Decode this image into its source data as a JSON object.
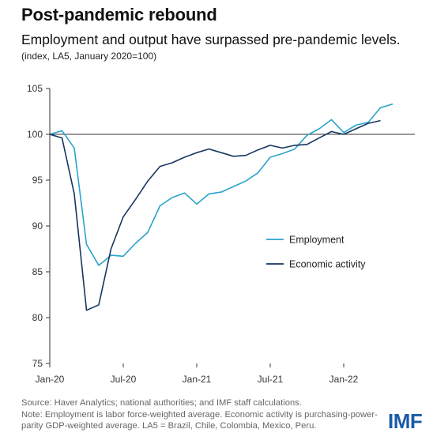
{
  "header": {
    "title": "Post-pandemic rebound",
    "subtitle": "Employment and output have surpassed pre-pandemic levels.",
    "unit_note": "(index, LA5, January 2020=100)"
  },
  "footer": {
    "source": "Source: Haver Analytics; national authorities; and IMF staff calculations.",
    "note": "Note: Employment is labor force-weighted average. Economic activity is purchasing-power-parity GDP-weighted average. LA5 = Brazil, Chile, Colombia, Mexico, Peru."
  },
  "logo": {
    "text": "IMF",
    "color": "#1a5aa8"
  },
  "chart_data": {
    "type": "line",
    "title": "Post-pandemic rebound",
    "subtitle": "Employment and output have surpassed pre-pandemic levels.",
    "ylabel": "",
    "xlabel": "",
    "ylim": [
      75,
      105
    ],
    "yticks": [
      75,
      80,
      85,
      90,
      95,
      100,
      105
    ],
    "xlim": [
      "2020-01",
      "2022-06"
    ],
    "xticks": [
      {
        "label": "Jan-20",
        "month": "2020-01"
      },
      {
        "label": "Jul-20",
        "month": "2020-07"
      },
      {
        "label": "Jan-21",
        "month": "2021-01"
      },
      {
        "label": "Jul-21",
        "month": "2021-07"
      },
      {
        "label": "Jan-22",
        "month": "2022-01"
      }
    ],
    "reference_line": 100,
    "grid": false,
    "legend_position": "right-middle",
    "series": [
      {
        "name": "Employment",
        "color": "#2aa3cc",
        "points": [
          [
            "2020-01",
            100.0
          ],
          [
            "2020-02",
            100.4
          ],
          [
            "2020-03",
            98.5
          ],
          [
            "2020-04",
            88.0
          ],
          [
            "2020-05",
            85.7
          ],
          [
            "2020-06",
            86.8
          ],
          [
            "2020-07",
            86.7
          ],
          [
            "2020-08",
            88.1
          ],
          [
            "2020-09",
            89.3
          ],
          [
            "2020-10",
            92.2
          ],
          [
            "2020-11",
            93.1
          ],
          [
            "2020-12",
            93.6
          ],
          [
            "2021-01",
            92.4
          ],
          [
            "2021-02",
            93.5
          ],
          [
            "2021-03",
            93.7
          ],
          [
            "2021-04",
            94.3
          ],
          [
            "2021-05",
            94.9
          ],
          [
            "2021-06",
            95.8
          ],
          [
            "2021-07",
            97.5
          ],
          [
            "2021-08",
            97.9
          ],
          [
            "2021-09",
            98.4
          ],
          [
            "2021-10",
            99.9
          ],
          [
            "2021-11",
            100.6
          ],
          [
            "2021-12",
            101.6
          ],
          [
            "2022-01",
            100.2
          ],
          [
            "2022-02",
            101.0
          ],
          [
            "2022-03",
            101.3
          ],
          [
            "2022-04",
            102.9
          ],
          [
            "2022-05",
            103.3
          ]
        ]
      },
      {
        "name": "Economic activity",
        "color": "#15365f",
        "points": [
          [
            "2020-01",
            100.0
          ],
          [
            "2020-02",
            99.6
          ],
          [
            "2020-03",
            93.5
          ],
          [
            "2020-04",
            80.8
          ],
          [
            "2020-05",
            81.4
          ],
          [
            "2020-06",
            87.5
          ],
          [
            "2020-07",
            91.0
          ],
          [
            "2020-08",
            92.9
          ],
          [
            "2020-09",
            94.9
          ],
          [
            "2020-10",
            96.5
          ],
          [
            "2020-11",
            96.9
          ],
          [
            "2020-12",
            97.5
          ],
          [
            "2021-01",
            98.0
          ],
          [
            "2021-02",
            98.4
          ],
          [
            "2021-03",
            98.0
          ],
          [
            "2021-04",
            97.6
          ],
          [
            "2021-05",
            97.7
          ],
          [
            "2021-06",
            98.3
          ],
          [
            "2021-07",
            98.8
          ],
          [
            "2021-08",
            98.5
          ],
          [
            "2021-09",
            98.8
          ],
          [
            "2021-10",
            98.9
          ],
          [
            "2021-11",
            99.6
          ],
          [
            "2021-12",
            100.3
          ],
          [
            "2022-01",
            100.0
          ],
          [
            "2022-02",
            100.6
          ],
          [
            "2022-03",
            101.2
          ],
          [
            "2022-04",
            101.5
          ]
        ]
      }
    ]
  }
}
